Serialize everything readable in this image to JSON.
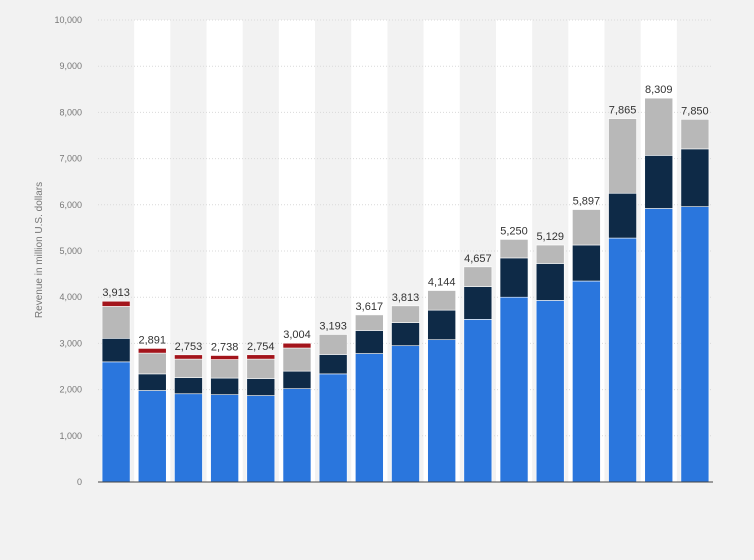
{
  "chart_data": {
    "type": "bar",
    "stacked": true,
    "title": "",
    "xlabel": "",
    "ylabel": "Revenue in million U.S. dollars",
    "ylim": [
      0,
      10000
    ],
    "yticks": [
      0,
      1000,
      2000,
      3000,
      4000,
      5000,
      6000,
      7000,
      8000,
      9000,
      10000
    ],
    "ytick_labels": [
      "0",
      "1,000",
      "2,000",
      "3,000",
      "4,000",
      "5,000",
      "6,000",
      "7,000",
      "8,000",
      "9,000",
      "10,000"
    ],
    "grid": true,
    "legend": "none",
    "categories": [
      "",
      "",
      "",
      "",
      "",
      "",
      "",
      "",
      "",
      "",
      "",
      "",
      "",
      "",
      "",
      "",
      ""
    ],
    "series": [
      {
        "color": "#2a76dd",
        "values": [
          2600,
          1980,
          1910,
          1890,
          1870,
          2020,
          2340,
          2780,
          2950,
          3080,
          3520,
          4000,
          3930,
          4350,
          5280,
          5920,
          5960
        ]
      },
      {
        "color": "#0e2a47",
        "values": [
          510,
          360,
          350,
          360,
          370,
          380,
          420,
          500,
          500,
          640,
          710,
          850,
          800,
          780,
          970,
          1150,
          1250
        ]
      },
      {
        "color": "#b8b8b8",
        "values": [
          690,
          450,
          400,
          400,
          420,
          500,
          433,
          337,
          363,
          424,
          427,
          400,
          399,
          767,
          1615,
          1239,
          640
        ]
      },
      {
        "color": "#a3141b",
        "values": [
          113,
          101,
          93,
          88,
          94,
          104,
          0,
          0,
          0,
          0,
          0,
          0,
          0,
          0,
          0,
          0,
          0
        ]
      }
    ],
    "totals": [
      3913,
      2891,
      2753,
      2738,
      2754,
      3004,
      3193,
      3617,
      3813,
      4144,
      4657,
      5250,
      5129,
      5897,
      7865,
      8309,
      7850
    ],
    "total_labels": [
      "3,913",
      "2,891",
      "2,753",
      "2,738",
      "2,754",
      "3,004",
      "3,193",
      "3,617",
      "3,813",
      "4,144",
      "4,657",
      "5,250",
      "5,129",
      "5,897",
      "7,865",
      "8,309",
      "7,850"
    ]
  },
  "colors": {
    "page_background": "#f2f2f2",
    "plot_background_alt": "#ffffff",
    "gridline": "#d9d9d9",
    "axis_text": "#777777",
    "value_text": "#333333"
  }
}
